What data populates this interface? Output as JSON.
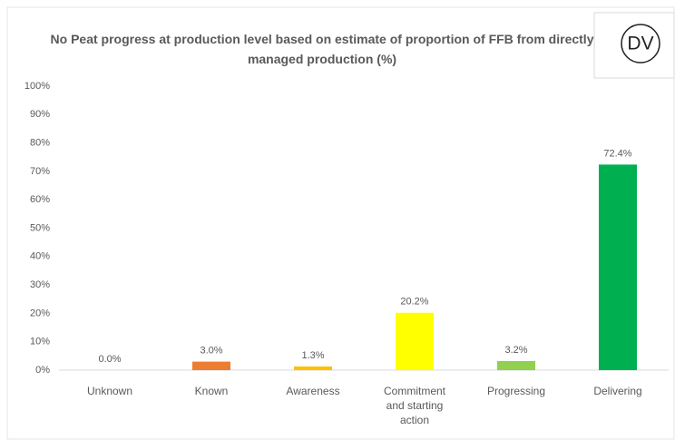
{
  "chart_data": {
    "type": "bar",
    "title": "No Peat progress at production level based on estimate of proportion of FFB from directly managed production (%)",
    "badge": "DV",
    "categories": [
      "Unknown",
      "Known",
      "Awareness",
      "Commitment and starting action",
      "Progressing",
      "Delivering"
    ],
    "values": [
      0.0,
      3.0,
      1.3,
      20.2,
      3.2,
      72.4
    ],
    "value_labels": [
      "0.0%",
      "3.0%",
      "1.3%",
      "20.2%",
      "3.2%",
      "72.4%"
    ],
    "colors": [
      "#a5a5a5",
      "#ed7d31",
      "#ffc000",
      "#ffff00",
      "#92d050",
      "#00b050"
    ],
    "ylim": [
      0,
      100
    ],
    "yticks": [
      {
        "value": 0,
        "label": "0%"
      },
      {
        "value": 10,
        "label": "10%"
      },
      {
        "value": 20,
        "label": "20%"
      },
      {
        "value": 30,
        "label": "30%"
      },
      {
        "value": 40,
        "label": "40%"
      },
      {
        "value": 50,
        "label": "50%"
      },
      {
        "value": 60,
        "label": "60%"
      },
      {
        "value": 70,
        "label": "70%"
      },
      {
        "value": 80,
        "label": "80%"
      },
      {
        "value": 90,
        "label": "90%"
      },
      {
        "value": 100,
        "label": "100%"
      }
    ],
    "grid": false
  }
}
